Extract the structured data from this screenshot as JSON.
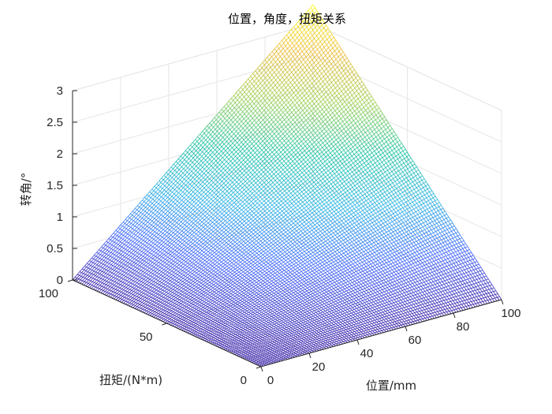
{
  "chart_data": {
    "type": "surface-mesh",
    "title": "位置，角度，扭矩关系",
    "xlabel": "位置/mm",
    "ylabel": "扭矩/(N*m)",
    "zlabel": "转角/°",
    "x_ticks": [
      "0",
      "20",
      "40",
      "60",
      "80",
      "100"
    ],
    "y_ticks": [
      "0",
      "50",
      "100"
    ],
    "z_ticks": [
      "0",
      "0.5",
      "1",
      "1.5",
      "2",
      "2.5",
      "3"
    ],
    "xlim": [
      0,
      100
    ],
    "ylim": [
      0,
      100
    ],
    "zlim": [
      0,
      3
    ],
    "x_range": [
      0,
      100
    ],
    "y_range": [
      0,
      100
    ],
    "z_min": 0,
    "z_max": 3.3,
    "grid": true,
    "colormap": [
      "#3e26a8",
      "#4367fd",
      "#2db3e5",
      "#21c3a5",
      "#9ccf51",
      "#ecba35",
      "#f9fb14"
    ]
  }
}
